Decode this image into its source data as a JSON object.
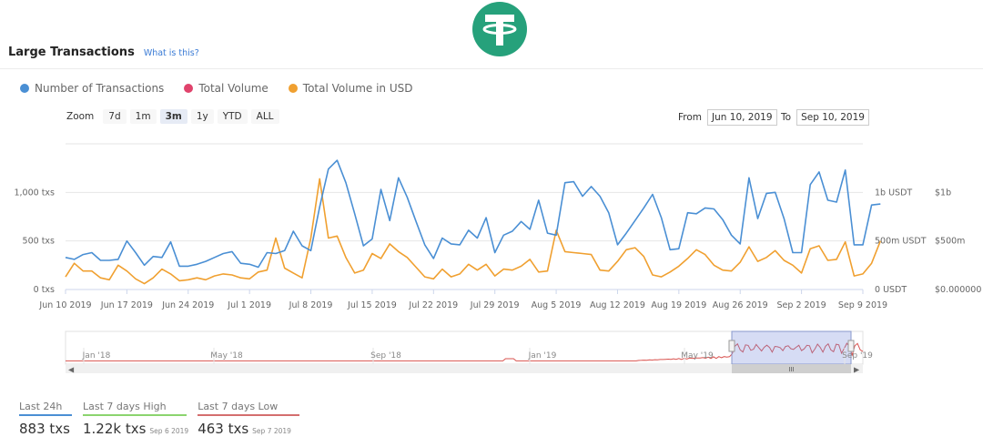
{
  "header": {
    "title": "Large Transactions",
    "what_is_this": "What is this?"
  },
  "legend": [
    {
      "label": "Number of Transactions",
      "color": "#4a8fd4"
    },
    {
      "label": "Total Volume",
      "color": "#e0436c"
    },
    {
      "label": "Total Volume in USD",
      "color": "#f0a030"
    }
  ],
  "zoom": {
    "label": "Zoom",
    "buttons": [
      "7d",
      "1m",
      "3m",
      "1y",
      "YTD",
      "ALL"
    ],
    "active": "3m"
  },
  "range": {
    "from_label": "From",
    "from_value": "Jun 10, 2019",
    "to_label": "To",
    "to_value": "Sep 10, 2019"
  },
  "chart_data": {
    "type": "line",
    "x_ticks": [
      "Jun 10 2019",
      "Jun 17 2019",
      "Jun 24 2019",
      "Jul 1 2019",
      "Jul 8 2019",
      "Jul 15 2019",
      "Jul 22 2019",
      "Jul 29 2019",
      "Aug 5 2019",
      "Aug 12 2019",
      "Aug 19 2019",
      "Aug 26 2019",
      "Sep 2 2019",
      "Sep 9 2019"
    ],
    "days": 92,
    "y_left": {
      "ticks": [
        0,
        500,
        1000
      ],
      "tick_labels": [
        "0 txs",
        "500 txs",
        "1,000 txs"
      ],
      "max": 1500
    },
    "y_right_usdt": {
      "tick_labels": [
        "0 USDT",
        "500m USDT",
        "1b USDT"
      ]
    },
    "y_right_usd": {
      "tick_labels": [
        "$0.000000",
        "$500m",
        "$1b"
      ]
    },
    "series": [
      {
        "name": "Number of Transactions",
        "color": "#4a8fd4",
        "values": [
          330,
          310,
          360,
          380,
          300,
          300,
          310,
          500,
          380,
          250,
          340,
          330,
          490,
          240,
          240,
          260,
          290,
          330,
          370,
          390,
          270,
          260,
          230,
          380,
          370,
          400,
          600,
          450,
          400,
          850,
          1240,
          1330,
          1100,
          780,
          450,
          520,
          1030,
          710,
          1150,
          950,
          700,
          460,
          320,
          530,
          470,
          460,
          610,
          530,
          740,
          380,
          560,
          600,
          700,
          620,
          920,
          580,
          560,
          1100,
          1110,
          960,
          1060,
          960,
          790,
          460,
          580,
          710,
          840,
          980,
          740,
          410,
          420,
          790,
          780,
          840,
          830,
          720,
          560,
          470,
          1150,
          730,
          990,
          1000,
          730,
          380,
          380,
          1080,
          1210,
          920,
          900,
          1230,
          460,
          460,
          870,
          880
        ]
      },
      {
        "name": "Total Volume in USD",
        "color": "#f0a030",
        "values": [
          130,
          270,
          190,
          190,
          120,
          100,
          250,
          190,
          110,
          60,
          120,
          210,
          160,
          90,
          100,
          120,
          100,
          140,
          160,
          150,
          120,
          110,
          180,
          200,
          530,
          220,
          170,
          120,
          530,
          1140,
          530,
          550,
          330,
          170,
          200,
          370,
          320,
          470,
          390,
          330,
          230,
          130,
          110,
          210,
          130,
          160,
          260,
          200,
          260,
          140,
          210,
          200,
          240,
          310,
          180,
          190,
          610,
          390,
          380,
          370,
          360,
          200,
          190,
          290,
          410,
          430,
          340,
          150,
          130,
          180,
          240,
          320,
          410,
          360,
          250,
          200,
          190,
          280,
          440,
          290,
          330,
          400,
          300,
          250,
          170,
          420,
          450,
          300,
          310,
          490,
          140,
          160,
          270,
          500
        ]
      }
    ]
  },
  "navigator": {
    "labels": [
      "Jan '18",
      "May '18",
      "Sep '18",
      "Jan '19",
      "May '19",
      "Sep '19"
    ],
    "grip_symbol": "III"
  },
  "stats": [
    {
      "label": "Last 24h",
      "value": "883 txs",
      "date": "",
      "color": "#4a8fd4"
    },
    {
      "label": "Last 7 days High",
      "value": "1.22k txs",
      "date": "Sep 6 2019",
      "color": "#8bd46e"
    },
    {
      "label": "Last 7 days Low",
      "value": "463 txs",
      "date": "Sep 7 2019",
      "color": "#d46e6e"
    }
  ]
}
